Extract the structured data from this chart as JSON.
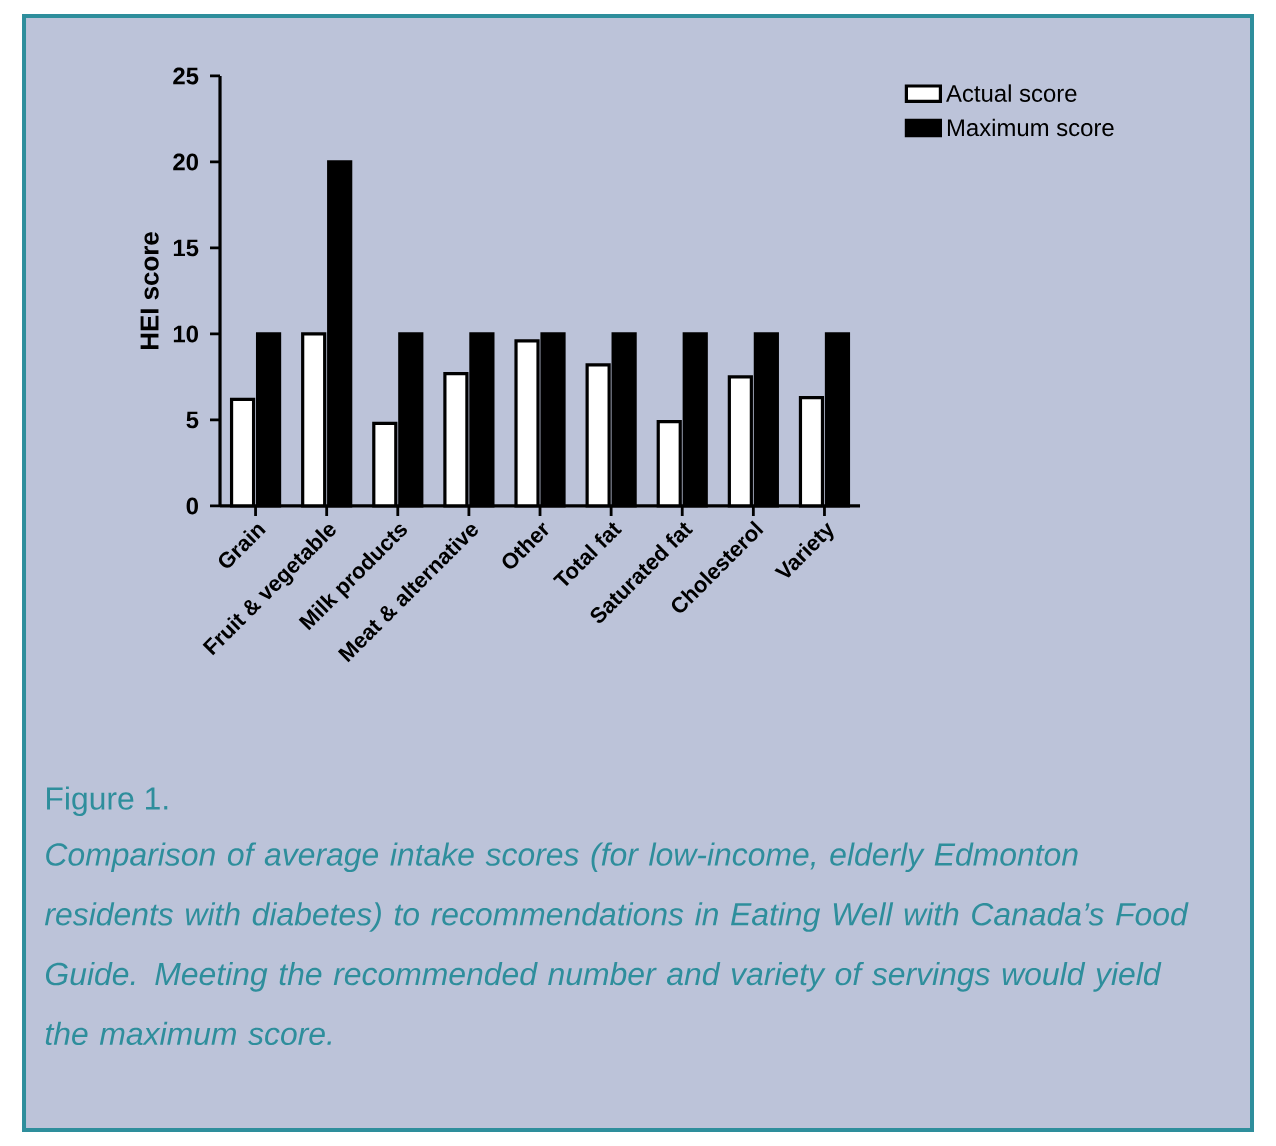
{
  "chart_data": {
    "type": "bar",
    "ylabel": "HEI score",
    "categories": [
      "Grain",
      "Fruit & vegetable",
      "Milk products",
      "Meat & alternative",
      "Other",
      "Total fat",
      "Saturated fat",
      "Cholesterol",
      "Variety"
    ],
    "series": [
      {
        "name": "Actual score",
        "color": "#ffffff",
        "values": [
          6.2,
          10,
          4.8,
          7.7,
          9.6,
          8.2,
          4.9,
          7.5,
          6.3
        ]
      },
      {
        "name": "Maximum score",
        "color": "#000000",
        "values": [
          10,
          20,
          10,
          10,
          10,
          10,
          10,
          10,
          10
        ]
      }
    ],
    "ylim": [
      0,
      25
    ],
    "yticks": [
      0,
      5,
      10,
      15,
      20,
      25
    ],
    "legend": "top right",
    "annotations": [
      "Figure 1.",
      "Comparison of average intake scores (for low-income, elderly Edmonton residents with diabetes) to recommendations in Eating Well with Canada’s Food Guide. Meeting the recommended number and variety of servings would yield the maximum score."
    ]
  }
}
